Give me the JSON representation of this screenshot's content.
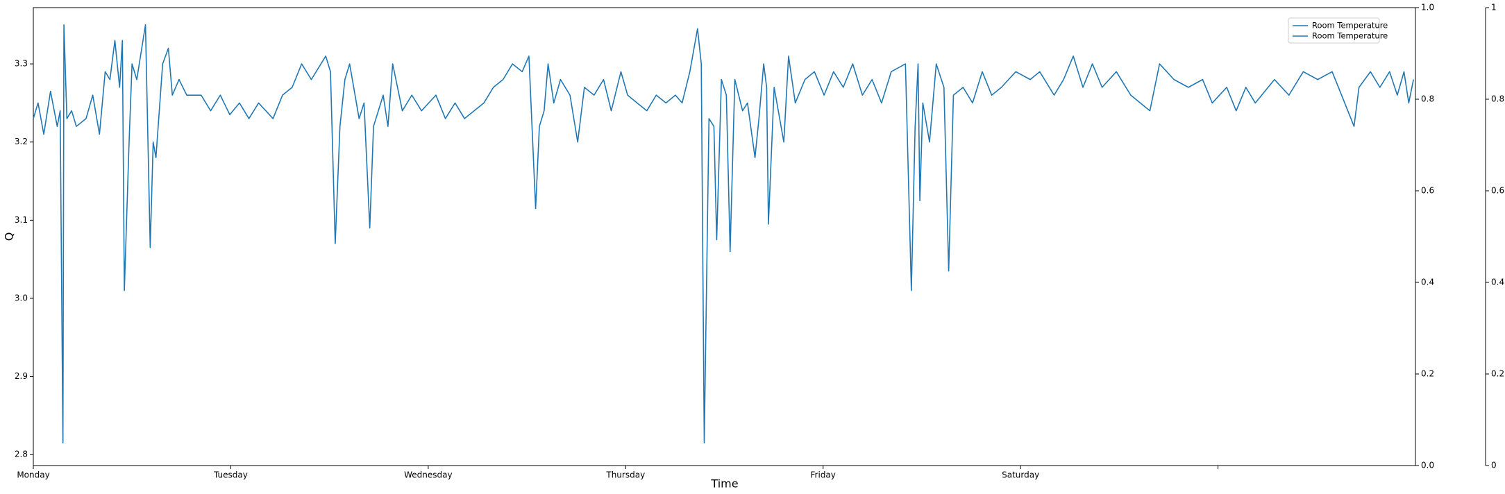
{
  "chart_data": {
    "type": "line",
    "x_label": "Time",
    "y_label": "Q",
    "xlim": [
      0,
      7
    ],
    "xticks": [
      {
        "value": 0,
        "label": "Monday"
      },
      {
        "value": 1,
        "label": "Tuesday"
      },
      {
        "value": 2,
        "label": "Wednesday"
      },
      {
        "value": 3,
        "label": "Thursday"
      },
      {
        "value": 4,
        "label": "Friday"
      },
      {
        "value": 5,
        "label": "Saturday"
      },
      {
        "value": 6,
        "label": null
      }
    ],
    "ylim": [
      2.786,
      3.372
    ],
    "yticks": [
      2.8,
      2.9,
      {
        "value": 3,
        "label": "3.0"
      },
      3.1,
      3.2,
      3.3
    ],
    "y2lim": [
      0,
      1
    ],
    "y2ticks": [
      {
        "value": 0,
        "label": "0.0"
      },
      0.2,
      0.4,
      0.6,
      0.8,
      {
        "value": 1,
        "label": "1.0"
      }
    ],
    "y3lim": [
      0,
      1
    ],
    "y3ticks": [
      0,
      0.2,
      0.4,
      0.6,
      0.8,
      1
    ],
    "legend_position": "upper right",
    "legend_labels": [
      "Room Temperature",
      "Room Temperature"
    ],
    "series": [
      {
        "name": "Room Temperature",
        "color": "#1f77b4",
        "x": [
          0,
          0.024,
          0.053,
          0.087,
          0.121,
          0.136,
          0.15,
          0.155,
          0.17,
          0.194,
          0.218,
          0.267,
          0.301,
          0.335,
          0.364,
          0.388,
          0.413,
          0.437,
          0.451,
          0.461,
          0.485,
          0.5,
          0.524,
          0.568,
          0.592,
          0.607,
          0.621,
          0.655,
          0.684,
          0.704,
          0.738,
          0.777,
          0.85,
          0.898,
          0.947,
          0.995,
          1.044,
          1.092,
          1.141,
          1.214,
          1.262,
          1.311,
          1.359,
          1.408,
          1.481,
          1.505,
          1.529,
          1.553,
          1.578,
          1.602,
          1.65,
          1.675,
          1.704,
          1.723,
          1.772,
          1.796,
          1.82,
          1.869,
          1.917,
          1.966,
          2.039,
          2.087,
          2.136,
          2.184,
          2.233,
          2.282,
          2.33,
          2.379,
          2.427,
          2.476,
          2.51,
          2.544,
          2.563,
          2.587,
          2.607,
          2.636,
          2.67,
          2.718,
          2.757,
          2.791,
          2.84,
          2.888,
          2.927,
          2.976,
          3.01,
          3.058,
          3.107,
          3.155,
          3.204,
          3.252,
          3.286,
          3.325,
          3.364,
          3.383,
          3.398,
          3.422,
          3.447,
          3.461,
          3.485,
          3.51,
          3.529,
          3.553,
          3.592,
          3.617,
          3.655,
          3.675,
          3.699,
          3.714,
          3.723,
          3.752,
          3.801,
          3.825,
          3.859,
          3.908,
          3.956,
          4.005,
          4.053,
          4.102,
          4.15,
          4.199,
          4.248,
          4.296,
          4.345,
          4.417,
          4.447,
          4.466,
          4.481,
          4.49,
          4.505,
          4.539,
          4.573,
          4.612,
          4.636,
          4.66,
          4.709,
          4.757,
          4.806,
          4.854,
          4.903,
          4.976,
          5.049,
          5.097,
          5.17,
          5.218,
          5.267,
          5.316,
          5.364,
          5.413,
          5.485,
          5.558,
          5.655,
          5.704,
          5.777,
          5.85,
          5.922,
          5.971,
          6.044,
          6.092,
          6.141,
          6.189,
          6.286,
          6.359,
          6.432,
          6.505,
          6.578,
          6.626,
          6.689,
          6.714,
          6.772,
          6.82,
          6.869,
          6.908,
          6.942,
          6.966,
          6.99
        ],
        "values": [
          3.23,
          3.25,
          3.21,
          3.265,
          3.22,
          3.24,
          2.815,
          3.35,
          3.23,
          3.24,
          3.22,
          3.23,
          3.26,
          3.21,
          3.29,
          3.28,
          3.33,
          3.27,
          3.33,
          3.01,
          3.2,
          3.3,
          3.28,
          3.35,
          3.065,
          3.2,
          3.18,
          3.3,
          3.32,
          3.26,
          3.28,
          3.26,
          3.26,
          3.24,
          3.26,
          3.235,
          3.25,
          3.23,
          3.25,
          3.23,
          3.26,
          3.27,
          3.3,
          3.28,
          3.31,
          3.29,
          3.07,
          3.22,
          3.28,
          3.3,
          3.23,
          3.25,
          3.09,
          3.22,
          3.26,
          3.22,
          3.3,
          3.24,
          3.26,
          3.24,
          3.26,
          3.23,
          3.25,
          3.23,
          3.24,
          3.25,
          3.27,
          3.28,
          3.3,
          3.29,
          3.31,
          3.115,
          3.22,
          3.24,
          3.3,
          3.25,
          3.28,
          3.26,
          3.2,
          3.27,
          3.26,
          3.28,
          3.24,
          3.29,
          3.26,
          3.25,
          3.24,
          3.26,
          3.25,
          3.26,
          3.25,
          3.29,
          3.345,
          3.3,
          2.815,
          3.23,
          3.22,
          3.075,
          3.28,
          3.26,
          3.06,
          3.28,
          3.24,
          3.25,
          3.18,
          3.23,
          3.3,
          3.27,
          3.095,
          3.27,
          3.2,
          3.31,
          3.25,
          3.28,
          3.29,
          3.26,
          3.29,
          3.27,
          3.3,
          3.26,
          3.28,
          3.25,
          3.29,
          3.3,
          3.01,
          3.22,
          3.3,
          3.125,
          3.25,
          3.2,
          3.3,
          3.27,
          3.035,
          3.26,
          3.27,
          3.25,
          3.29,
          3.26,
          3.27,
          3.29,
          3.28,
          3.29,
          3.26,
          3.28,
          3.31,
          3.27,
          3.3,
          3.27,
          3.29,
          3.26,
          3.24,
          3.3,
          3.28,
          3.27,
          3.28,
          3.25,
          3.27,
          3.24,
          3.27,
          3.25,
          3.28,
          3.26,
          3.29,
          3.28,
          3.29,
          3.26,
          3.22,
          3.27,
          3.29,
          3.27,
          3.29,
          3.26,
          3.29,
          3.25,
          3.28
        ]
      }
    ]
  }
}
